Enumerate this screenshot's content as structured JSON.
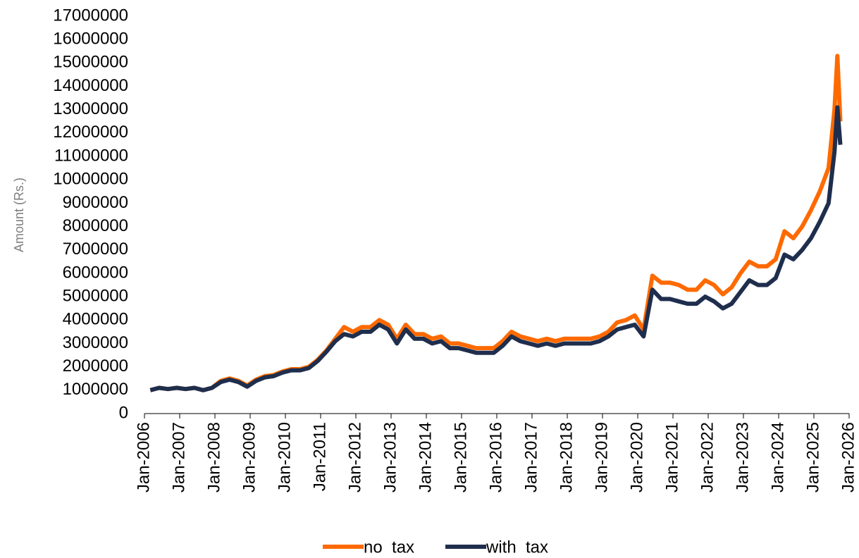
{
  "chart_data": {
    "type": "line",
    "y_label": "Amount (Rs.)",
    "x": [
      "2006-03",
      "2006-06",
      "2006-09",
      "2006-12",
      "2007-03",
      "2007-06",
      "2007-09",
      "2007-12",
      "2008-03",
      "2008-06",
      "2008-09",
      "2008-12",
      "2009-03",
      "2009-06",
      "2009-09",
      "2009-12",
      "2010-03",
      "2010-06",
      "2010-09",
      "2010-12",
      "2011-03",
      "2011-06",
      "2011-09",
      "2011-12",
      "2012-03",
      "2012-06",
      "2012-09",
      "2012-12",
      "2013-03",
      "2013-06",
      "2013-09",
      "2013-12",
      "2014-03",
      "2014-06",
      "2014-09",
      "2014-12",
      "2015-03",
      "2015-06",
      "2015-09",
      "2015-12",
      "2016-03",
      "2016-06",
      "2016-09",
      "2016-12",
      "2017-03",
      "2017-06",
      "2017-09",
      "2017-12",
      "2018-03",
      "2018-06",
      "2018-09",
      "2018-12",
      "2019-03",
      "2019-06",
      "2019-09",
      "2019-12",
      "2020-03",
      "2020-06",
      "2020-09",
      "2020-12",
      "2021-03",
      "2021-06",
      "2021-09",
      "2021-12",
      "2022-03",
      "2022-06",
      "2022-09",
      "2022-12",
      "2023-03",
      "2023-06",
      "2023-09",
      "2023-12",
      "2024-03",
      "2024-06",
      "2024-09",
      "2024-12",
      "2025-03",
      "2025-06",
      "2025-08",
      "2025-09",
      "2025-10"
    ],
    "series": [
      {
        "name": "no  tax",
        "color": "#fe6a00",
        "values": [
          1000000,
          1100000,
          1050000,
          1100000,
          1050000,
          1100000,
          1000000,
          1100000,
          1400000,
          1500000,
          1400000,
          1200000,
          1450000,
          1600000,
          1650000,
          1800000,
          1900000,
          1900000,
          2000000,
          2300000,
          2700000,
          3200000,
          3700000,
          3500000,
          3700000,
          3700000,
          4000000,
          3800000,
          3200000,
          3800000,
          3400000,
          3400000,
          3200000,
          3300000,
          3000000,
          3000000,
          2900000,
          2800000,
          2800000,
          2800000,
          3100000,
          3500000,
          3300000,
          3200000,
          3100000,
          3200000,
          3100000,
          3200000,
          3200000,
          3200000,
          3200000,
          3300000,
          3500000,
          3900000,
          4000000,
          4200000,
          3600000,
          5900000,
          5600000,
          5600000,
          5500000,
          5300000,
          5300000,
          5700000,
          5500000,
          5100000,
          5400000,
          6000000,
          6500000,
          6300000,
          6300000,
          6600000,
          7800000,
          7500000,
          8000000,
          8700000,
          9500000,
          10500000,
          13000000,
          15300000,
          12500000
        ]
      },
      {
        "name": "with  tax",
        "color": "#1f2e4d",
        "values": [
          1000000,
          1100000,
          1050000,
          1100000,
          1050000,
          1100000,
          1000000,
          1100000,
          1350000,
          1450000,
          1350000,
          1150000,
          1400000,
          1550000,
          1600000,
          1750000,
          1850000,
          1850000,
          1950000,
          2250000,
          2650000,
          3100000,
          3400000,
          3300000,
          3500000,
          3500000,
          3800000,
          3600000,
          3000000,
          3600000,
          3200000,
          3200000,
          3000000,
          3100000,
          2800000,
          2800000,
          2700000,
          2600000,
          2600000,
          2600000,
          2900000,
          3300000,
          3100000,
          3000000,
          2900000,
          3000000,
          2900000,
          3000000,
          3000000,
          3000000,
          3000000,
          3100000,
          3300000,
          3600000,
          3700000,
          3800000,
          3300000,
          5300000,
          4900000,
          4900000,
          4800000,
          4700000,
          4700000,
          5000000,
          4800000,
          4500000,
          4700000,
          5200000,
          5700000,
          5500000,
          5500000,
          5800000,
          6800000,
          6600000,
          7000000,
          7500000,
          8200000,
          9000000,
          11200000,
          13100000,
          11500000
        ]
      }
    ],
    "ylim": [
      0,
      17000000
    ],
    "yticks": [
      0,
      1000000,
      2000000,
      3000000,
      4000000,
      5000000,
      6000000,
      7000000,
      8000000,
      9000000,
      10000000,
      11000000,
      12000000,
      13000000,
      14000000,
      15000000,
      16000000,
      17000000
    ],
    "xlim": [
      "2006-01",
      "2026-01"
    ],
    "xticks": [
      {
        "value": "2006-01",
        "label": "Jan-2006"
      },
      {
        "value": "2007-01",
        "label": "Jan-2007"
      },
      {
        "value": "2008-01",
        "label": "Jan-2008"
      },
      {
        "value": "2009-01",
        "label": "Jan-2009"
      },
      {
        "value": "2010-01",
        "label": "Jan-2010"
      },
      {
        "value": "2011-01",
        "label": "Jan-2011"
      },
      {
        "value": "2012-01",
        "label": "Jan-2012"
      },
      {
        "value": "2013-01",
        "label": "Jan-2013"
      },
      {
        "value": "2014-01",
        "label": "Jan-2014"
      },
      {
        "value": "2015-01",
        "label": "Jan-2015"
      },
      {
        "value": "2016-01",
        "label": "Jan-2016"
      },
      {
        "value": "2017-01",
        "label": "Jan-2017"
      },
      {
        "value": "2018-01",
        "label": "Jan-2018"
      },
      {
        "value": "2019-01",
        "label": "Jan-2019"
      },
      {
        "value": "2020-01",
        "label": "Jan-2020"
      },
      {
        "value": "2021-01",
        "label": "Jan-2021"
      },
      {
        "value": "2022-01",
        "label": "Jan-2022"
      },
      {
        "value": "2023-01",
        "label": "Jan-2023"
      },
      {
        "value": "2024-01",
        "label": "Jan-2024"
      },
      {
        "value": "2025-01",
        "label": "Jan-2025"
      },
      {
        "value": "2026-01",
        "label": "Jan-2026"
      }
    ],
    "legend": "bottom"
  }
}
